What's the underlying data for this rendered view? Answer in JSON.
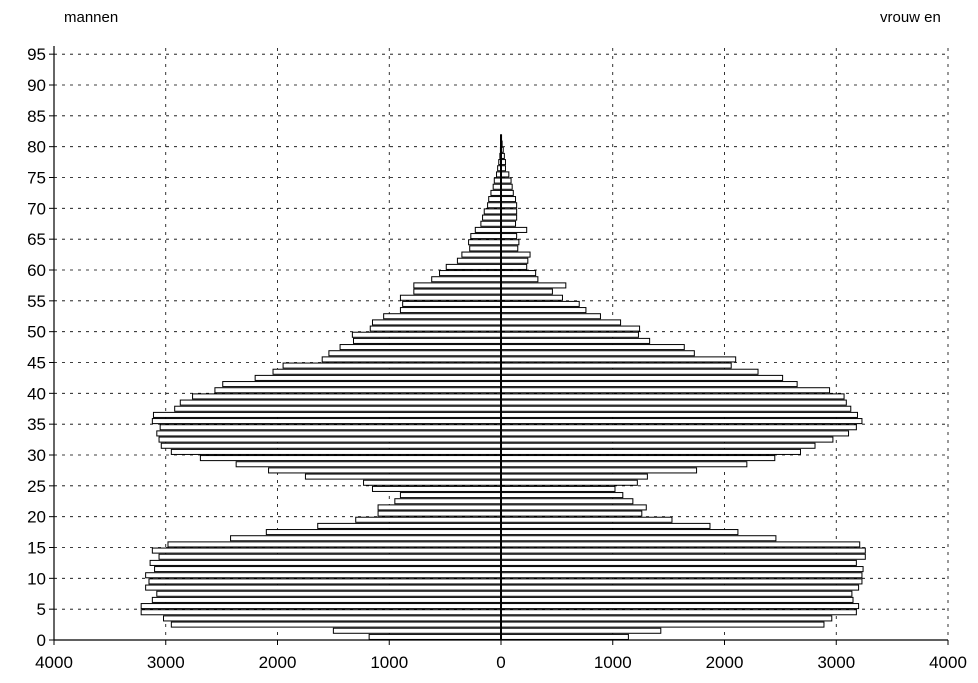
{
  "chart_data": {
    "type": "bar",
    "orientation": "horizontal",
    "subtype": "population-pyramid",
    "left_label": "mannen",
    "right_label": "vrouw en",
    "xlim": [
      -4000,
      4000
    ],
    "ylim": [
      0,
      96
    ],
    "x_tick_values": [
      -4000,
      -3000,
      -2000,
      -1000,
      0,
      1000,
      2000,
      3000,
      4000
    ],
    "x_tick_labels": [
      "4000",
      "3000",
      "2000",
      "1000",
      "0",
      "1000",
      "2000",
      "3000",
      "4000"
    ],
    "y_ticks": [
      0,
      5,
      10,
      15,
      20,
      25,
      30,
      35,
      40,
      45,
      50,
      55,
      60,
      65,
      70,
      75,
      80,
      85,
      90,
      95
    ],
    "grid": true,
    "bar_fill": "#ffffff",
    "bar_stroke": "#000000",
    "ages": [
      0,
      1,
      2,
      3,
      4,
      5,
      6,
      7,
      8,
      9,
      10,
      11,
      12,
      13,
      14,
      15,
      16,
      17,
      18,
      19,
      20,
      21,
      22,
      23,
      24,
      25,
      26,
      27,
      28,
      29,
      30,
      31,
      32,
      33,
      34,
      35,
      36,
      37,
      38,
      39,
      40,
      41,
      42,
      43,
      44,
      45,
      46,
      47,
      48,
      49,
      50,
      51,
      52,
      53,
      54,
      55,
      56,
      57,
      58,
      59,
      60,
      61,
      62,
      63,
      64,
      65,
      66,
      67,
      68,
      69,
      70,
      71,
      72,
      73,
      74,
      75,
      76,
      77,
      78,
      79,
      80,
      81
    ],
    "series": [
      {
        "name": "mannen",
        "values": [
          1180,
          1500,
          2950,
          3020,
          3220,
          3220,
          3120,
          3080,
          3180,
          3150,
          3180,
          3100,
          3140,
          3060,
          3120,
          2980,
          2420,
          2100,
          1640,
          1300,
          1100,
          1100,
          950,
          900,
          1150,
          1230,
          1750,
          2080,
          2370,
          2690,
          2950,
          3040,
          3060,
          3080,
          3050,
          3120,
          3110,
          2920,
          2870,
          2760,
          2560,
          2490,
          2200,
          2040,
          1950,
          1600,
          1540,
          1440,
          1320,
          1330,
          1170,
          1150,
          1050,
          900,
          880,
          900,
          780,
          780,
          620,
          550,
          490,
          390,
          350,
          280,
          290,
          270,
          230,
          180,
          165,
          150,
          120,
          110,
          90,
          70,
          60,
          40,
          30,
          20,
          10,
          5,
          3,
          2
        ]
      },
      {
        "name": "vrouw en",
        "values": [
          1140,
          1430,
          2890,
          2960,
          3180,
          3200,
          3150,
          3140,
          3200,
          3230,
          3230,
          3240,
          3180,
          3260,
          3260,
          3210,
          2460,
          2120,
          1870,
          1530,
          1260,
          1300,
          1180,
          1090,
          1020,
          1220,
          1310,
          1750,
          2200,
          2450,
          2680,
          2810,
          2970,
          3110,
          3180,
          3230,
          3190,
          3130,
          3090,
          3070,
          2940,
          2650,
          2520,
          2300,
          2060,
          2100,
          1730,
          1640,
          1330,
          1230,
          1240,
          1070,
          890,
          760,
          700,
          550,
          460,
          580,
          330,
          310,
          230,
          240,
          260,
          150,
          160,
          140,
          230,
          130,
          140,
          140,
          140,
          130,
          110,
          100,
          90,
          70,
          40,
          40,
          30,
          20,
          10,
          5
        ]
      }
    ]
  }
}
